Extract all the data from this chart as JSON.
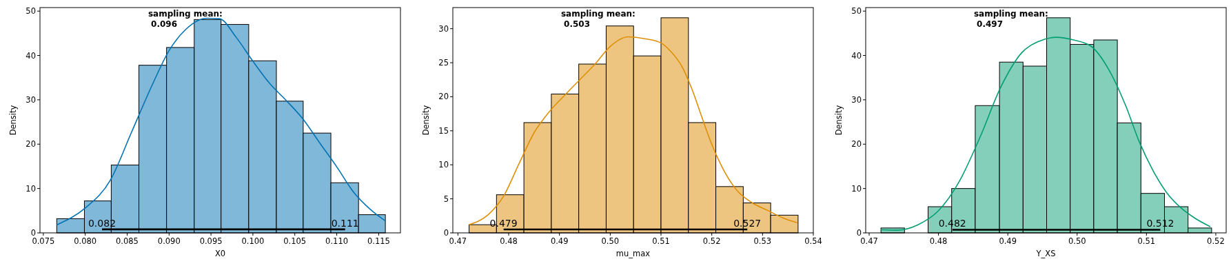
{
  "chart_data": [
    {
      "type": "histogram",
      "xlabel": "X0",
      "ylabel": "Density",
      "xlim": [
        0.0746,
        0.1176
      ],
      "ylim": [
        0,
        50.8
      ],
      "xticks": [
        {
          "value": 0.075,
          "label": "0.075"
        },
        {
          "value": 0.08,
          "label": "0.080"
        },
        {
          "value": 0.085,
          "label": "0.085"
        },
        {
          "value": 0.09,
          "label": "0.090"
        },
        {
          "value": 0.095,
          "label": "0.095"
        },
        {
          "value": 0.1,
          "label": "0.100"
        },
        {
          "value": 0.105,
          "label": "0.105"
        },
        {
          "value": 0.11,
          "label": "0.110"
        },
        {
          "value": 0.115,
          "label": "0.115"
        }
      ],
      "yticks": [
        0,
        10,
        20,
        30,
        40,
        50
      ],
      "grid": false,
      "bins": [
        0.0766,
        0.0799,
        0.0831,
        0.0864,
        0.0897,
        0.093,
        0.0962,
        0.0995,
        0.1028,
        0.106,
        0.1093,
        0.1126,
        0.1158
      ],
      "series": [
        {
          "color": "#80b8da",
          "values": [
            3.2,
            7.2,
            15.3,
            37.8,
            41.8,
            48.1,
            47.0,
            38.8,
            29.7,
            22.5,
            11.3,
            4.1
          ]
        },
        {
          "type": "line",
          "color": "#0173b2",
          "x": [
            0.0766,
            0.08,
            0.083,
            0.0855,
            0.088,
            0.09,
            0.092,
            0.0945,
            0.096,
            0.098,
            0.1,
            0.102,
            0.104,
            0.106,
            0.108,
            0.11,
            0.112,
            0.114,
            0.1158
          ],
          "values": [
            1.8,
            5.6,
            11.9,
            22.6,
            33.4,
            41.1,
            45.9,
            48.4,
            48.3,
            44.1,
            38.7,
            33.7,
            29.8,
            25.6,
            20.2,
            14.9,
            9.2,
            5.3,
            2.7
          ]
        },
        {
          "type": "line",
          "color": "#000000",
          "x": [
            0.082,
            0.111
          ],
          "values": [
            0.8,
            0.8
          ]
        }
      ],
      "annotations": [
        "sampling mean:\n 0.096",
        {
          "text": "0.082",
          "x": 0.082,
          "y": 0.8
        },
        {
          "text": "0.111",
          "x": 0.111,
          "y": 0.8
        }
      ]
    },
    {
      "type": "histogram",
      "xlabel": "mu_max",
      "ylabel": "Density",
      "xlim": [
        0.469,
        0.54
      ],
      "ylim": [
        0,
        33.1
      ],
      "xticks": [
        0.47,
        0.48,
        0.49,
        {
          "value": 0.5,
          "label": "0.50"
        },
        0.51,
        0.52,
        0.53,
        0.54
      ],
      "yticks": [
        0,
        5,
        10,
        15,
        20,
        25,
        30
      ],
      "grid": false,
      "bins": [
        0.4722,
        0.4776,
        0.483,
        0.4884,
        0.4938,
        0.4992,
        0.5046,
        0.51,
        0.5154,
        0.5208,
        0.5262,
        0.5316,
        0.537
      ],
      "series": [
        {
          "color": "#eec580",
          "values": [
            1.2,
            5.6,
            16.2,
            20.4,
            24.8,
            30.4,
            26.0,
            31.6,
            16.2,
            6.8,
            4.4,
            2.6
          ]
        },
        {
          "type": "line",
          "color": "#de8f05",
          "x": [
            0.4722,
            0.476,
            0.479,
            0.482,
            0.485,
            0.488,
            0.491,
            0.494,
            0.497,
            0.5,
            0.5035,
            0.507,
            0.51,
            0.512,
            0.514,
            0.516,
            0.518,
            0.52,
            0.522,
            0.525,
            0.528,
            0.531,
            0.534,
            0.5368
          ],
          "values": [
            1.2,
            2.7,
            5.4,
            10.1,
            14.7,
            17.8,
            20.2,
            22.5,
            24.8,
            27.4,
            28.8,
            28.5,
            27.9,
            26.6,
            24.6,
            21.3,
            17.1,
            13.0,
            9.7,
            6.2,
            4.4,
            3.3,
            2.2,
            1.5
          ]
        },
        {
          "type": "line",
          "color": "#000000",
          "x": [
            0.479,
            0.527
          ],
          "values": [
            0.5,
            0.5
          ]
        }
      ],
      "annotations": [
        "sampling mean:\n 0.503",
        {
          "text": "0.479",
          "x": 0.479,
          "y": 0.5
        },
        {
          "text": "0.527",
          "x": 0.527,
          "y": 0.5
        }
      ]
    },
    {
      "type": "histogram",
      "xlabel": "Y_XS",
      "ylabel": "Density",
      "xlim": [
        0.4695,
        0.5215
      ],
      "ylim": [
        0,
        50.8
      ],
      "xticks": [
        0.47,
        0.48,
        0.49,
        {
          "value": 0.5,
          "label": "0.50"
        },
        0.51,
        0.52
      ],
      "yticks": [
        0,
        10,
        20,
        30,
        40,
        50
      ],
      "grid": false,
      "bins": [
        0.4717,
        0.4751,
        0.4785,
        0.4819,
        0.4853,
        0.4888,
        0.4922,
        0.4956,
        0.499,
        0.5024,
        0.5058,
        0.5092,
        0.5126,
        0.516,
        0.5194
      ],
      "series": [
        {
          "color": "#84cfb9",
          "values": [
            1.1,
            0,
            5.9,
            10.0,
            28.7,
            38.5,
            37.6,
            48.5,
            42.5,
            43.5,
            24.8,
            8.9,
            5.9,
            1.1
          ]
        },
        {
          "type": "line",
          "color": "#029e73",
          "x": [
            0.4717,
            0.474,
            0.477,
            0.48,
            0.483,
            0.486,
            0.489,
            0.492,
            0.4945,
            0.497,
            0.4995,
            0.502,
            0.5045,
            0.507,
            0.509,
            0.511,
            0.513,
            0.515,
            0.517,
            0.5192
          ],
          "values": [
            0.7,
            0.6,
            1.8,
            5.0,
            11.6,
            21.6,
            32.9,
            40.6,
            43.2,
            44.1,
            43.5,
            42.1,
            37.0,
            28.7,
            20.4,
            13.9,
            8.9,
            5.6,
            3.3,
            1.4
          ]
        },
        {
          "type": "line",
          "color": "#000000",
          "x": [
            0.482,
            0.512
          ],
          "values": [
            0.7,
            0.7
          ]
        }
      ],
      "annotations": [
        "sampling mean:\n 0.497",
        {
          "text": "0.482",
          "x": 0.482,
          "y": 0.7
        },
        {
          "text": "0.512",
          "x": 0.512,
          "y": 0.7
        }
      ]
    }
  ]
}
